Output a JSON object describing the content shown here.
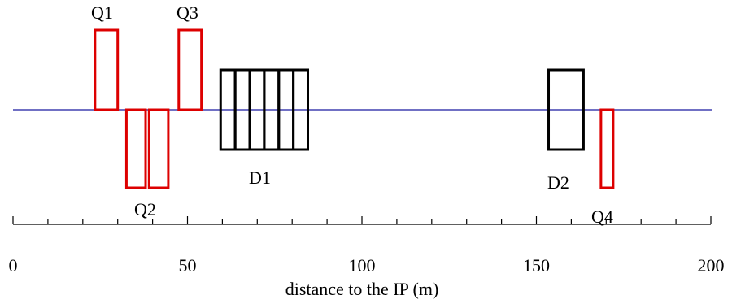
{
  "beamline": {
    "color": "#1a1aa0"
  },
  "axis": {
    "title": "distance to the IP (m)",
    "range": [
      0,
      200
    ],
    "major_ticks": [
      {
        "value": 0,
        "label": "0"
      },
      {
        "value": 50,
        "label": "50"
      },
      {
        "value": 100,
        "label": "100"
      },
      {
        "value": 150,
        "label": "150"
      },
      {
        "value": 200,
        "label": "200"
      }
    ],
    "minor_step": 10
  },
  "quadrupoles": {
    "color": "#dd0000",
    "items": [
      {
        "name": "Q1",
        "start": 23.5,
        "end": 30.0,
        "polarity": "up"
      },
      {
        "name": "Q2",
        "start": 32.5,
        "end": 38.0,
        "polarity": "down"
      },
      {
        "name": "Q2",
        "start": 39.0,
        "end": 44.5,
        "polarity": "down"
      },
      {
        "name": "Q3",
        "start": 47.5,
        "end": 54.0,
        "polarity": "up"
      },
      {
        "name": "Q4",
        "start": 168.5,
        "end": 172.0,
        "polarity": "down"
      }
    ]
  },
  "dipoles": {
    "color": "#000000",
    "items": [
      {
        "name": "D1",
        "start": 59.5,
        "end": 84.5,
        "segments": 6
      },
      {
        "name": "D2",
        "start": 153.5,
        "end": 163.5,
        "segments": 1
      }
    ]
  },
  "labels": {
    "q1": "Q1",
    "q2": "Q2",
    "q3": "Q3",
    "q4": "Q4",
    "d1": "D1",
    "d2": "D2"
  }
}
